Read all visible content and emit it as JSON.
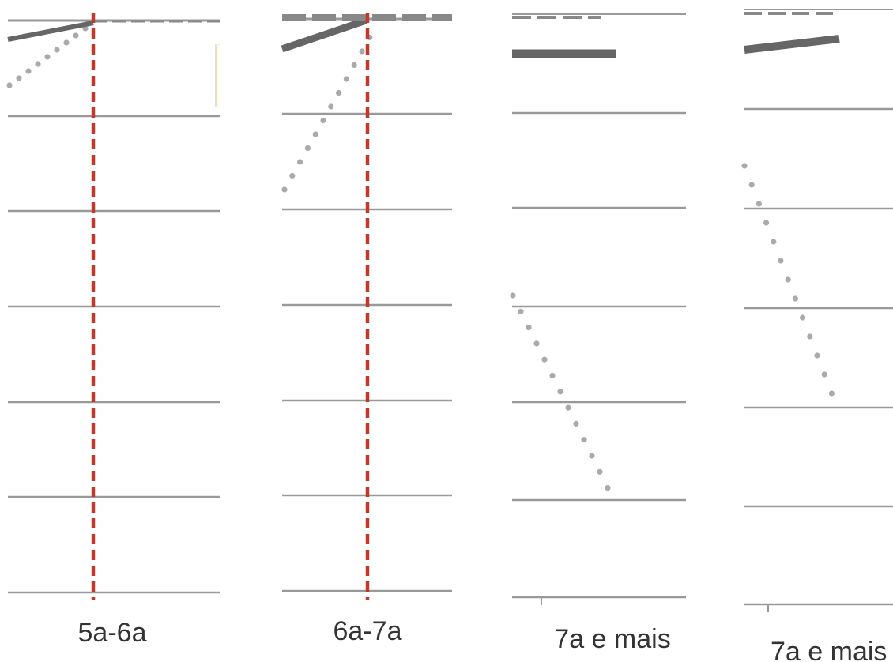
{
  "chart_data": [
    {
      "type": "line",
      "categories": [
        "5a-6a"
      ],
      "title": "",
      "xlabel": "",
      "ylabel": "",
      "ylim": [
        0,
        6
      ],
      "grid": true,
      "reference_line": {
        "color": "#c0392b",
        "style": "dashed",
        "category": "5a-6a"
      }
    },
    {
      "type": "line",
      "categories": [
        "6a-7a"
      ],
      "title": "",
      "xlabel": "",
      "ylabel": "",
      "ylim": [
        0,
        6
      ],
      "grid": true,
      "reference_line": {
        "color": "#c0392b",
        "style": "dashed",
        "category": "6a-7a"
      }
    },
    {
      "type": "line",
      "categories": [
        "7a e mais"
      ],
      "title": "",
      "xlabel": "",
      "ylabel": "",
      "ylim": [
        0,
        6
      ],
      "grid": true
    },
    {
      "type": "line",
      "categories": [
        "7a e mais"
      ],
      "title": "",
      "xlabel": "",
      "ylabel": "",
      "ylim": [
        0,
        6
      ],
      "grid": true
    }
  ],
  "colors": {
    "grid": "#999999",
    "solid_series": "#666666",
    "dashed_series": "#888888",
    "dotted_series": "#aaaaaa",
    "reference": "#c0392b",
    "label": "#333333"
  }
}
